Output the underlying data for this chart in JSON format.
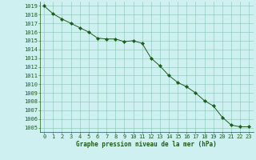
{
  "x": [
    0,
    1,
    2,
    3,
    4,
    5,
    6,
    7,
    8,
    9,
    10,
    11,
    12,
    13,
    14,
    15,
    16,
    17,
    18,
    19,
    20,
    21,
    22,
    23
  ],
  "y": [
    1019.0,
    1018.1,
    1017.5,
    1017.0,
    1016.5,
    1016.0,
    1015.3,
    1015.2,
    1015.2,
    1014.9,
    1015.0,
    1014.7,
    1013.0,
    1012.1,
    1011.0,
    1010.2,
    1009.7,
    1009.0,
    1008.1,
    1007.5,
    1006.2,
    1005.3,
    1005.1,
    1005.1
  ],
  "line_color": "#1a5c1a",
  "marker_color": "#1a5c1a",
  "bg_color": "#cff0f0",
  "grid_color": "#7ec8b0",
  "xlabel": "Graphe pression niveau de la mer (hPa)",
  "xlabel_color": "#1a5c1a",
  "tick_color": "#1a5c1a",
  "ylim": [
    1004.5,
    1019.5
  ],
  "xlim": [
    -0.5,
    23.5
  ],
  "yticks": [
    1005,
    1006,
    1007,
    1008,
    1009,
    1010,
    1011,
    1012,
    1013,
    1014,
    1015,
    1016,
    1017,
    1018,
    1019
  ],
  "xticks": [
    0,
    1,
    2,
    3,
    4,
    5,
    6,
    7,
    8,
    9,
    10,
    11,
    12,
    13,
    14,
    15,
    16,
    17,
    18,
    19,
    20,
    21,
    22,
    23
  ],
  "tick_fontsize": 5.0,
  "xlabel_fontsize": 5.5,
  "marker_size": 2.2,
  "linewidth": 0.7
}
